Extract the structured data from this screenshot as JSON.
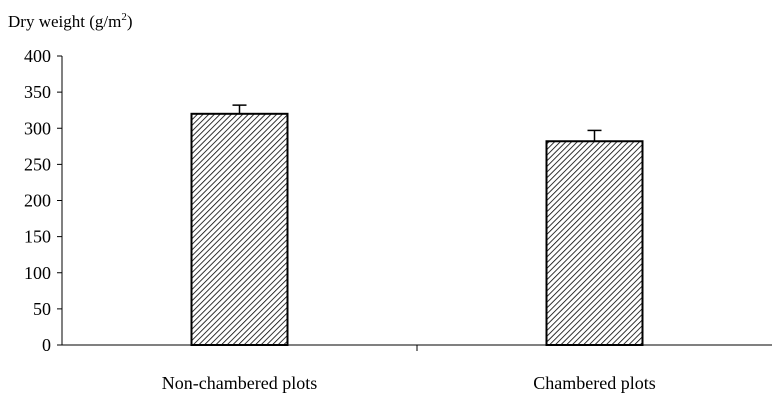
{
  "chart_data": {
    "type": "bar",
    "ylabel": "Dry weight (g/m",
    "ylabel_superscript": "2",
    "ylabel_suffix": ")",
    "categories": [
      "Non-chambered plots",
      "Chambered plots"
    ],
    "values": [
      320,
      282
    ],
    "error": [
      12,
      15
    ],
    "ylim": [
      0,
      400
    ],
    "yticks": [
      0,
      50,
      100,
      150,
      200,
      250,
      300,
      350,
      400
    ],
    "ytick_labels": [
      "0",
      "50",
      "100",
      "150",
      "200",
      "250",
      "300",
      "350",
      "400"
    ],
    "grid": false,
    "legend": "none",
    "bar_fill": "diagonal-hatch",
    "colors": {
      "hatch": "#000000",
      "bar_background": "#ffffff",
      "axis": "#000000"
    }
  }
}
